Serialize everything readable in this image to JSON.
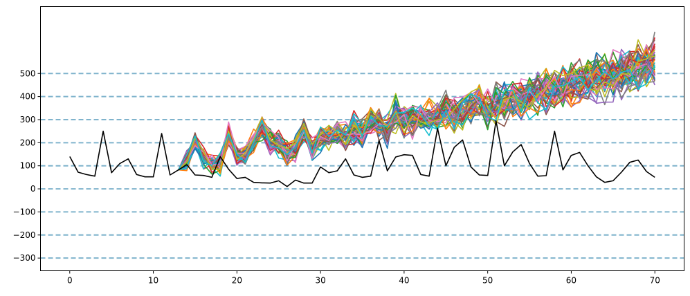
{
  "chart_data": {
    "type": "line",
    "title": "",
    "xlabel": "",
    "ylabel": "",
    "xlim": [
      -3.5,
      73.5
    ],
    "ylim": [
      -355,
      790
    ],
    "x_ticks": [
      0,
      10,
      20,
      30,
      40,
      50,
      60,
      70
    ],
    "y_ticks": [
      -300,
      -200,
      -100,
      0,
      100,
      200,
      300,
      400,
      500
    ],
    "reference_lines_y": [
      -300,
      -200,
      -100,
      0,
      100,
      200,
      300,
      400,
      500
    ],
    "reference_line_color": "#7fb3cc",
    "grid": false,
    "legend": "none",
    "observed_series": {
      "color": "#000000",
      "x_start": 0,
      "values": [
        140,
        72,
        62,
        55,
        250,
        70,
        110,
        130,
        62,
        52,
        52,
        240,
        60,
        82,
        105,
        60,
        58,
        50,
        140,
        85,
        45,
        50,
        28,
        26,
        25,
        35,
        10,
        38,
        25,
        25,
        95,
        70,
        78,
        130,
        60,
        50,
        55,
        210,
        78,
        138,
        148,
        145,
        62,
        55,
        262,
        100,
        180,
        212,
        95,
        60,
        58,
        295,
        100,
        160,
        192,
        110,
        55,
        57,
        250,
        82,
        145,
        158,
        100,
        52,
        28,
        35,
        72,
        115,
        125,
        75,
        50
      ]
    },
    "forecast_paths": {
      "count": 50,
      "x_start": 13,
      "x_end": 70,
      "start_value": 82,
      "colors": [
        "#1f77b4",
        "#ff7f0e",
        "#2ca02c",
        "#d62728",
        "#9467bd",
        "#8c564b",
        "#e377c2",
        "#7f7f7f",
        "#bcbd22",
        "#17becf"
      ],
      "mean": [
        82,
        120,
        205,
        135,
        110,
        108,
        240,
        135,
        150,
        205,
        265,
        205,
        195,
        145,
        170,
        260,
        175,
        220,
        230,
        245,
        225,
        260,
        245,
        295,
        280,
        245,
        330,
        290,
        300,
        305,
        310,
        315,
        340,
        330,
        345,
        355,
        375,
        335,
        360,
        380,
        390,
        400,
        405,
        420,
        430,
        440,
        445,
        455,
        460,
        470,
        480,
        490,
        500,
        505,
        515,
        525,
        535,
        545
      ]
    }
  }
}
